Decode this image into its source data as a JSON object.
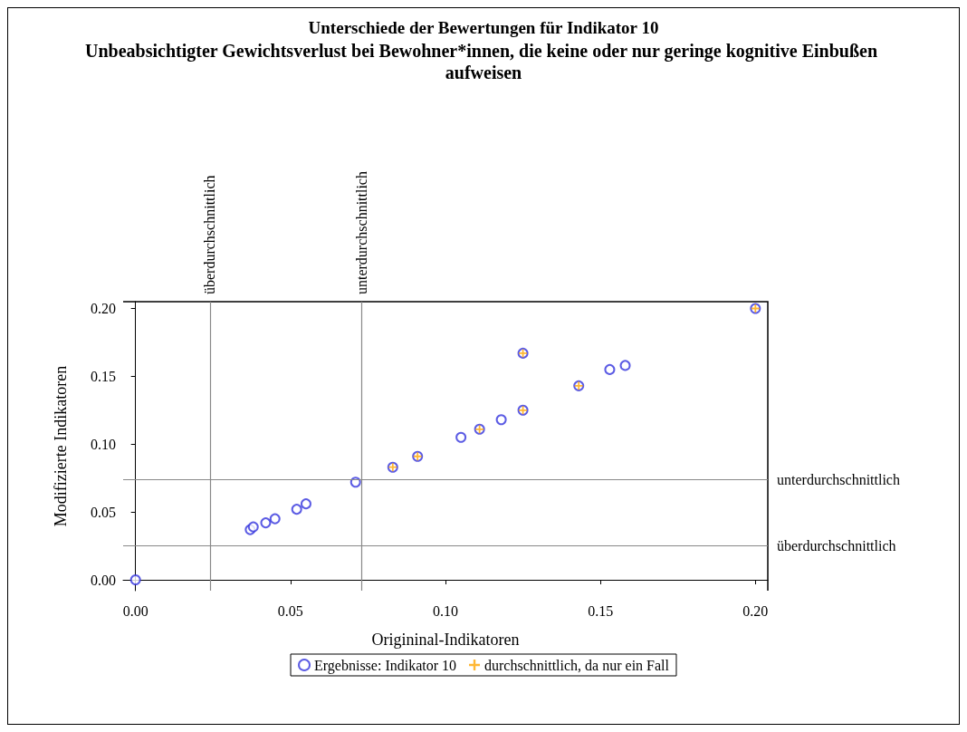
{
  "chart_data": {
    "type": "scatter",
    "title": "Unterschiede der Bewertungen für Indikator 10",
    "subtitle": "Unbeabsichtigter Gewichtsverlust bei Bewohner*innen, die keine oder nur geringe kognitive Einbußen aufweisen",
    "xlabel": "Origininal-Indikatoren",
    "ylabel": "Modifizierte Indikatoren",
    "xlim": [
      -0.004,
      0.204
    ],
    "ylim": [
      -0.008,
      0.205
    ],
    "xticks": [
      {
        "value": 0,
        "label": "0.00"
      },
      {
        "value": 0.05,
        "label": "0.05"
      },
      {
        "value": 0.1,
        "label": "0.10"
      },
      {
        "value": 0.15,
        "label": "0.15"
      },
      {
        "value": 0.2,
        "label": "0.20"
      }
    ],
    "yticks": [
      {
        "value": 0,
        "label": "0.00"
      },
      {
        "value": 0.05,
        "label": "0.05"
      },
      {
        "value": 0.1,
        "label": "0.10"
      },
      {
        "value": 0.15,
        "label": "0.15"
      },
      {
        "value": 0.2,
        "label": "0.20"
      }
    ],
    "legend": "bottom",
    "series": [
      {
        "name": "Ergebnisse: Indikator 10",
        "color": "#3333dd",
        "marker": "circle",
        "x": [
          0,
          0.037,
          0.038,
          0.042,
          0.045,
          0.052,
          0.055,
          0.071,
          0.083,
          0.091,
          0.105,
          0.111,
          0.118,
          0.125,
          0.125,
          0.143,
          0.153,
          0.158,
          0.2
        ],
        "values": [
          0,
          0.037,
          0.039,
          0.042,
          0.045,
          0.052,
          0.056,
          0.072,
          0.083,
          0.091,
          0.105,
          0.111,
          0.118,
          0.125,
          0.167,
          0.143,
          0.155,
          0.158,
          0.2
        ]
      },
      {
        "name": "durchschnittlich, da nur ein Fall",
        "color": "#ffa500",
        "marker": "cross",
        "x": [
          0.083,
          0.091,
          0.111,
          0.125,
          0.125,
          0.143,
          0.2
        ],
        "values": [
          0.083,
          0.091,
          0.111,
          0.125,
          0.167,
          0.143,
          0.2
        ]
      }
    ],
    "ref_lines": [
      {
        "axis": "x",
        "value": 0.024,
        "label": "überdurchschnittlich"
      },
      {
        "axis": "x",
        "value": 0.073,
        "label": "unterdurchschnittlich"
      },
      {
        "axis": "y",
        "value": 0.074,
        "label": "unterdurchschnittlich"
      },
      {
        "axis": "y",
        "value": 0.025,
        "label": "überdurchschnittlich"
      }
    ]
  }
}
